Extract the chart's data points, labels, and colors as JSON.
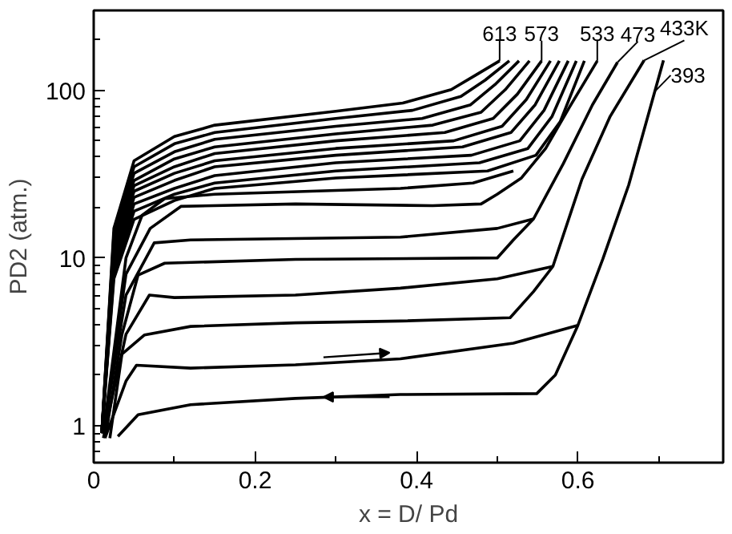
{
  "chart_data": {
    "type": "line",
    "xlabel": "x = D/ Pd",
    "ylabel": "PD2 (atm.)",
    "log": "y",
    "grid": false,
    "marker": "none",
    "line_style": "solid",
    "xlim": [
      0,
      0.78
    ],
    "ylim": [
      0.6,
      300
    ],
    "xticks": [
      0,
      {
        "value": 0.1,
        "label": null
      },
      0.2,
      {
        "value": 0.3,
        "label": null
      },
      0.4,
      {
        "value": 0.5,
        "label": null
      },
      0.6,
      {
        "value": 0.7,
        "label": null
      }
    ],
    "yticks": [
      {
        "value": 0.7,
        "label": null
      },
      {
        "value": 0.8,
        "label": null
      },
      {
        "value": 0.9,
        "label": null
      },
      1,
      {
        "value": 2,
        "label": null
      },
      {
        "value": 3,
        "label": null
      },
      {
        "value": 4,
        "label": null
      },
      {
        "value": 5,
        "label": null
      },
      {
        "value": 6,
        "label": null
      },
      {
        "value": 7,
        "label": null
      },
      {
        "value": 8,
        "label": null
      },
      {
        "value": 9,
        "label": null
      },
      10,
      {
        "value": 20,
        "label": null
      },
      {
        "value": 30,
        "label": null
      },
      {
        "value": 40,
        "label": null
      },
      {
        "value": 50,
        "label": null
      },
      {
        "value": 60,
        "label": null
      },
      {
        "value": 70,
        "label": null
      },
      {
        "value": 80,
        "label": null
      },
      {
        "value": 90,
        "label": null
      },
      100,
      {
        "value": 200,
        "label": null
      }
    ],
    "series": [
      {
        "name": "613",
        "color": "#000000",
        "x": [
          0.01,
          0.025,
          0.05,
          0.1,
          0.15,
          0.3,
          0.383,
          0.443,
          0.473,
          0.503
        ],
        "values": [
          0.9,
          15,
          38,
          53,
          62,
          75,
          84,
          101,
          123,
          150
        ]
      },
      {
        "color": "#000000",
        "x": [
          0.01,
          0.025,
          0.05,
          0.1,
          0.15,
          0.3,
          0.395,
          0.455,
          0.485,
          0.515
        ],
        "values": [
          0.9,
          14,
          35,
          48,
          56,
          68,
          76,
          92,
          115,
          150
        ]
      },
      {
        "color": "#000000",
        "x": [
          0.01,
          0.025,
          0.05,
          0.1,
          0.15,
          0.3,
          0.407,
          0.467,
          0.497,
          0.527
        ],
        "values": [
          0.9,
          13,
          32,
          43,
          51,
          61,
          68,
          82,
          108,
          150
        ]
      },
      {
        "color": "#000000",
        "x": [
          0.01,
          0.025,
          0.05,
          0.1,
          0.15,
          0.3,
          0.42,
          0.48,
          0.51,
          0.54
        ],
        "values": [
          0.9,
          12,
          29,
          39,
          46,
          55,
          62,
          74,
          101,
          150
        ]
      },
      {
        "name": "573",
        "color": "#000000",
        "x": [
          0.01,
          0.025,
          0.05,
          0.1,
          0.15,
          0.3,
          0.435,
          0.495,
          0.525,
          0.555
        ],
        "values": [
          0.9,
          11,
          27,
          35,
          42,
          50,
          56,
          68,
          95,
          150
        ]
      },
      {
        "color": "#000000",
        "x": [
          0.01,
          0.025,
          0.05,
          0.1,
          0.15,
          0.3,
          0.446,
          0.506,
          0.536,
          0.566
        ],
        "values": [
          0.9,
          10,
          25,
          32,
          38,
          45,
          50,
          61,
          88,
          150
        ]
      },
      {
        "color": "#000000",
        "x": [
          0.01,
          0.025,
          0.05,
          0.1,
          0.15,
          0.3,
          0.457,
          0.517,
          0.547,
          0.577
        ],
        "values": [
          0.9,
          9,
          23,
          29,
          35,
          41,
          46,
          56,
          82,
          150
        ]
      },
      {
        "color": "#000000",
        "x": [
          0.01,
          0.025,
          0.05,
          0.1,
          0.15,
          0.3,
          0.468,
          0.528,
          0.558,
          0.588
        ],
        "values": [
          0.9,
          8.5,
          21,
          26,
          31,
          37,
          41,
          50,
          76,
          150
        ]
      },
      {
        "color": "#000000",
        "x": [
          0.01,
          0.025,
          0.05,
          0.1,
          0.15,
          0.3,
          0.478,
          0.538,
          0.568,
          0.598
        ],
        "values": [
          0.9,
          8,
          19,
          24,
          28,
          33,
          37,
          45,
          70,
          150
        ]
      },
      {
        "color": "#000000",
        "x": [
          0.01,
          0.025,
          0.05,
          0.1,
          0.15,
          0.3,
          0.488,
          0.548,
          0.578,
          0.608
        ],
        "values": [
          0.9,
          7.5,
          17,
          22,
          26,
          30,
          33,
          41,
          65,
          150
        ]
      },
      {
        "color": "#000000",
        "x": [
          0.012,
          0.04,
          0.06,
          0.088,
          0.15,
          0.38,
          0.47,
          0.52
        ],
        "values": [
          0.9,
          10,
          18,
          22.6,
          24,
          26,
          28,
          33
        ]
      },
      {
        "name": "533",
        "color": "#000000",
        "x": [
          0.012,
          0.04,
          0.07,
          0.108,
          0.25,
          0.42,
          0.48,
          0.5,
          0.53,
          0.56,
          0.59,
          0.624
        ],
        "values": [
          0.9,
          8,
          15,
          20.3,
          21,
          20.5,
          21,
          24,
          30,
          45,
          80,
          150
        ]
      },
      {
        "color": "#000000",
        "x": [
          0.012,
          0.04,
          0.075,
          0.12,
          0.38,
          0.5,
          0.545
        ],
        "values": [
          0.9,
          6,
          12.3,
          12.8,
          13.3,
          15,
          17.1
        ]
      },
      {
        "name": "473",
        "color": "#000000",
        "x": [
          0.015,
          0.035,
          0.055,
          0.088,
          0.25,
          0.5,
          0.52,
          0.545,
          0.582,
          0.618,
          0.649
        ],
        "values": [
          0.88,
          3.5,
          7.9,
          9.3,
          9.8,
          10,
          12.8,
          17.1,
          36.6,
          82,
          147
        ]
      },
      {
        "color": "#000000",
        "x": [
          0.012,
          0.04,
          0.069,
          0.1,
          0.25,
          0.38,
          0.5,
          0.569
        ],
        "values": [
          0.84,
          3.5,
          6,
          5.8,
          6,
          6.6,
          7.5,
          8.9
        ]
      },
      {
        "name": "433K",
        "color": "#000000",
        "x": [
          0.02,
          0.035,
          0.063,
          0.12,
          0.25,
          0.38,
          0.516,
          0.545,
          0.569,
          0.605,
          0.64,
          0.682
        ],
        "values": [
          0.84,
          2.67,
          3.47,
          3.9,
          4.1,
          4.2,
          4.4,
          6.3,
          8.9,
          29.5,
          70,
          151
        ]
      },
      {
        "color": "#000000",
        "x": [
          0.014,
          0.04,
          0.053,
          0.12,
          0.25,
          0.38,
          0.52,
          0.6
        ],
        "values": [
          0.84,
          1.84,
          2.29,
          2.2,
          2.3,
          2.5,
          3.1,
          3.96
        ]
      },
      {
        "name": "393",
        "color": "#000000",
        "x": [
          0.03,
          0.055,
          0.12,
          0.25,
          0.38,
          0.549,
          0.572,
          0.6,
          0.631,
          0.663,
          0.706
        ],
        "values": [
          0.86,
          1.16,
          1.33,
          1.45,
          1.53,
          1.55,
          2.0,
          3.96,
          9.9,
          27.3,
          151
        ]
      }
    ]
  }
}
